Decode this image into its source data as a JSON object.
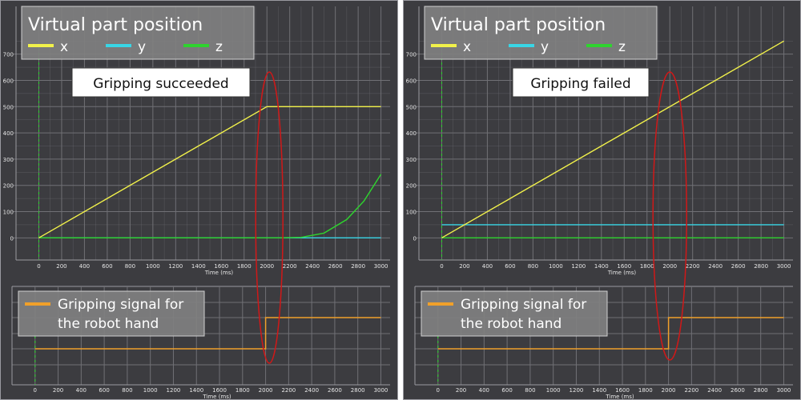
{
  "colors": {
    "background": "#3c3c40",
    "grid": "#707075",
    "x": "#f2f24a",
    "y": "#38d6e6",
    "z": "#2ed42e",
    "signal": "#f0a02a",
    "ellipse": "#d01818",
    "start_marker": "#2ed42e",
    "label_box": "#808080"
  },
  "panels": [
    {
      "legend_title": "Virtual part position",
      "legend_items": [
        "x",
        "y",
        "z"
      ],
      "status_label": "Gripping succeeded",
      "signal_label_line1": "Gripping signal for",
      "signal_label_line2": "the robot hand"
    },
    {
      "legend_title": "Virtual part position",
      "legend_items": [
        "x",
        "y",
        "z"
      ],
      "status_label": "Gripping failed",
      "signal_label_line1": "Gripping signal for",
      "signal_label_line2": "the robot hand"
    }
  ],
  "chart_data": [
    {
      "type": "line",
      "title": "",
      "xlabel": "Time (ms)",
      "ylabel": "",
      "xlim": [
        -200,
        3080
      ],
      "ylim": [
        -60,
        760
      ],
      "xticks": [
        0,
        200,
        400,
        600,
        800,
        1000,
        1200,
        1400,
        1600,
        1800,
        2000,
        2200,
        2400,
        2600,
        2800,
        3000
      ],
      "yticks": [
        0,
        100,
        200,
        300,
        400,
        500,
        600,
        700
      ],
      "grid": true,
      "legend": "top-left",
      "series": [
        {
          "name": "x",
          "points": [
            [
              0,
              0
            ],
            [
              2000,
              500
            ],
            [
              3000,
              500
            ]
          ]
        },
        {
          "name": "y",
          "points": [
            [
              0,
              0
            ],
            [
              3000,
              0
            ]
          ]
        },
        {
          "name": "z",
          "points": [
            [
              0,
              0
            ],
            [
              2100,
              0
            ],
            [
              2300,
              2
            ],
            [
              2500,
              18
            ],
            [
              2700,
              70
            ],
            [
              2850,
              140
            ],
            [
              3000,
              242
            ]
          ]
        }
      ]
    },
    {
      "type": "line",
      "title": "",
      "xlabel": "Time (ms)",
      "ylabel": "",
      "xlim": [
        -200,
        3080
      ],
      "ylim": [
        0,
        1
      ],
      "xticks": [
        0,
        200,
        400,
        600,
        800,
        1000,
        1200,
        1400,
        1600,
        1800,
        2000,
        2200,
        2400,
        2600,
        2800,
        3000
      ],
      "grid": true,
      "legend": "top-left",
      "series": [
        {
          "name": "Gripping signal for the robot hand",
          "points": [
            [
              0,
              0
            ],
            [
              2000,
              0
            ],
            [
              2000,
              1
            ],
            [
              3000,
              1
            ]
          ]
        }
      ]
    },
    {
      "type": "line",
      "title": "",
      "xlabel": "Time (ms)",
      "ylabel": "",
      "xlim": [
        -200,
        3080
      ],
      "ylim": [
        -60,
        760
      ],
      "xticks": [
        0,
        200,
        400,
        600,
        800,
        1000,
        1200,
        1400,
        1600,
        1800,
        2000,
        2200,
        2400,
        2600,
        2800,
        3000
      ],
      "yticks": [
        0,
        100,
        200,
        300,
        400,
        500,
        600,
        700
      ],
      "grid": true,
      "legend": "top-left",
      "series": [
        {
          "name": "x",
          "points": [
            [
              0,
              0
            ],
            [
              3000,
              750
            ]
          ]
        },
        {
          "name": "y",
          "points": [
            [
              0,
              50
            ],
            [
              3000,
              50
            ]
          ]
        },
        {
          "name": "z",
          "points": [
            [
              0,
              0
            ],
            [
              3000,
              0
            ]
          ]
        }
      ]
    },
    {
      "type": "line",
      "title": "",
      "xlabel": "Time (ms)",
      "ylabel": "",
      "xlim": [
        -200,
        3080
      ],
      "ylim": [
        0,
        1
      ],
      "xticks": [
        0,
        200,
        400,
        600,
        800,
        1000,
        1200,
        1400,
        1600,
        1800,
        2000,
        2200,
        2400,
        2600,
        2800,
        3000
      ],
      "grid": true,
      "legend": "top-left",
      "series": [
        {
          "name": "Gripping signal for the robot hand",
          "points": [
            [
              0,
              0
            ],
            [
              2000,
              0
            ],
            [
              2000,
              1
            ],
            [
              3000,
              1
            ]
          ]
        }
      ]
    }
  ]
}
